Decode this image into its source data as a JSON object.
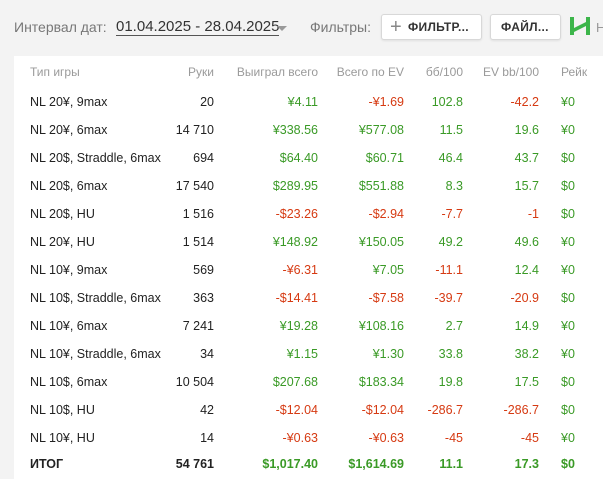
{
  "toolbar": {
    "date_label": "Интервал дат:",
    "date_range": "01.04.2025 - 28.04.2025",
    "filters_label": "Фильтры:",
    "filter_button": "ФИЛЬТР...",
    "file_button": "ФАЙЛ...",
    "trailing_text": "Н"
  },
  "colors": {
    "positive": "#3a9a26",
    "negative": "#d63a12",
    "logo": "#3cb54a"
  },
  "table": {
    "columns": [
      "Тип игры",
      "Руки",
      "Выиграл всего",
      "Всего по EV",
      "бб/100",
      "EV bb/100",
      "Рейк"
    ],
    "rows": [
      [
        "NL 20¥, 9max",
        "20",
        "¥4.11",
        "-¥1.69",
        "102.8",
        "-42.2",
        "¥0"
      ],
      [
        "NL 20¥, 6max",
        "14 710",
        "¥338.56",
        "¥577.08",
        "11.5",
        "19.6",
        "¥0"
      ],
      [
        "NL 20$, Straddle, 6max",
        "694",
        "$64.40",
        "$60.71",
        "46.4",
        "43.7",
        "$0"
      ],
      [
        "NL 20$, 6max",
        "17 540",
        "$289.95",
        "$551.88",
        "8.3",
        "15.7",
        "$0"
      ],
      [
        "NL 20$, HU",
        "1 516",
        "-$23.26",
        "-$2.94",
        "-7.7",
        "-1",
        "$0"
      ],
      [
        "NL 20¥, HU",
        "1 514",
        "¥148.92",
        "¥150.05",
        "49.2",
        "49.6",
        "¥0"
      ],
      [
        "NL 10¥, 9max",
        "569",
        "-¥6.31",
        "¥7.05",
        "-11.1",
        "12.4",
        "¥0"
      ],
      [
        "NL 10$, Straddle, 6max",
        "363",
        "-$14.41",
        "-$7.58",
        "-39.7",
        "-20.9",
        "$0"
      ],
      [
        "NL 10¥, 6max",
        "7 241",
        "¥19.28",
        "¥108.16",
        "2.7",
        "14.9",
        "¥0"
      ],
      [
        "NL 10¥, Straddle, 6max",
        "34",
        "¥1.15",
        "¥1.30",
        "33.8",
        "38.2",
        "¥0"
      ],
      [
        "NL 10$, 6max",
        "10 504",
        "$207.68",
        "$183.34",
        "19.8",
        "17.5",
        "$0"
      ],
      [
        "NL 10$, HU",
        "42",
        "-$12.04",
        "-$12.04",
        "-286.7",
        "-286.7",
        "$0"
      ],
      [
        "NL 10¥, HU",
        "14",
        "-¥0.63",
        "-¥0.63",
        "-45",
        "-45",
        "¥0"
      ]
    ],
    "total": [
      "ИТОГ",
      "54 761",
      "$1,017.40",
      "$1,614.69",
      "11.1",
      "17.3",
      "$0"
    ]
  }
}
